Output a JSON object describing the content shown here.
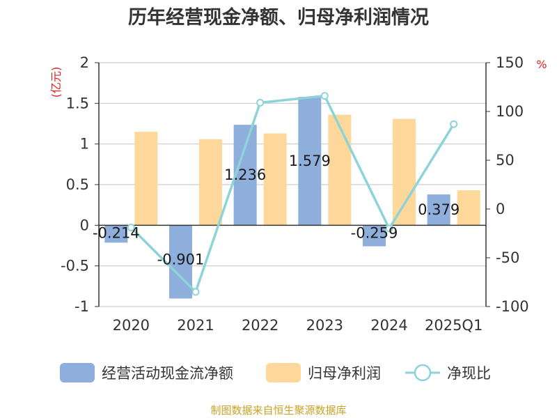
{
  "title": "历年经营现金净额、归母净利润情况",
  "source": "制图数据来自恒生聚源数据库",
  "left_unit": "(亿元)",
  "right_unit": "%",
  "chart_data": {
    "type": "bar",
    "categories": [
      "2020",
      "2021",
      "2022",
      "2023",
      "2024",
      "2025Q1"
    ],
    "series": [
      {
        "name": "经营活动现金流净额",
        "type": "bar",
        "axis": "left",
        "color": "#8eaedb",
        "values": [
          -0.214,
          -0.901,
          1.236,
          1.579,
          -0.259,
          0.379
        ]
      },
      {
        "name": "归母净利润",
        "type": "bar",
        "axis": "left",
        "color": "#fdd89a",
        "values": [
          1.15,
          1.06,
          1.13,
          1.36,
          1.31,
          0.43
        ]
      },
      {
        "name": "净现比",
        "type": "line",
        "axis": "right",
        "color": "#8dd3d8",
        "values": [
          -19,
          -85,
          109,
          116,
          -20,
          87
        ]
      }
    ],
    "data_labels": [
      "-0.214",
      "-0.901",
      "1.236",
      "1.579",
      "-0.259",
      "0.379"
    ],
    "left_axis": {
      "ticks": [
        "2",
        "1.5",
        "1",
        "0.5",
        "0",
        "-0.5",
        "-1"
      ],
      "min": -1,
      "max": 2
    },
    "right_axis": {
      "ticks": [
        "150",
        "100",
        "50",
        "0",
        "-50",
        "-100"
      ],
      "min": -100,
      "max": 150
    },
    "grid": true,
    "legend_position": "bottom"
  }
}
